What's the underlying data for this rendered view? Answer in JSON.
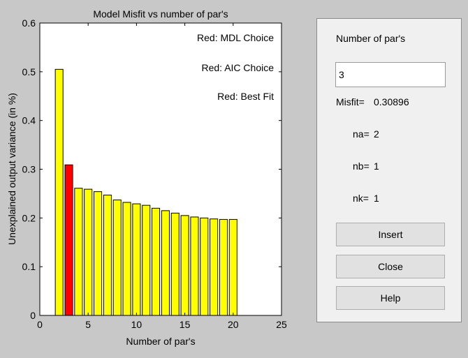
{
  "chart_data": {
    "type": "bar",
    "title": "Model Misfit vs number of par's",
    "xlabel": "Number of par's",
    "ylabel": "Unexplained output variance (in %)",
    "xlim": [
      0,
      25
    ],
    "ylim": [
      0,
      0.6
    ],
    "xticks": [
      0,
      5,
      10,
      15,
      20,
      25
    ],
    "yticks": [
      0,
      0.1,
      0.2,
      0.3,
      0.4,
      0.5,
      0.6
    ],
    "xtick_labels": [
      "0",
      "5",
      "10",
      "15",
      "20",
      "25"
    ],
    "ytick_labels": [
      "0",
      "0.1",
      "0.2",
      "0.3",
      "0.4",
      "0.5",
      "0.6"
    ],
    "grid": false,
    "x": [
      2,
      3,
      4,
      5,
      6,
      7,
      8,
      9,
      10,
      11,
      12,
      13,
      14,
      15,
      16,
      17,
      18,
      19,
      20
    ],
    "values": [
      0.505,
      0.309,
      0.261,
      0.259,
      0.254,
      0.247,
      0.237,
      0.232,
      0.229,
      0.226,
      0.22,
      0.215,
      0.21,
      0.205,
      0.202,
      0.2,
      0.198,
      0.197,
      0.197
    ],
    "bar_colors": [
      "#ffff00",
      "#ff0000",
      "#ffff00",
      "#ffff00",
      "#ffff00",
      "#ffff00",
      "#ffff00",
      "#ffff00",
      "#ffff00",
      "#ffff00",
      "#ffff00",
      "#ffff00",
      "#ffff00",
      "#ffff00",
      "#ffff00",
      "#ffff00",
      "#ffff00",
      "#ffff00",
      "#ffff00"
    ],
    "highlighted_x": 3,
    "annotations": [
      "Red: MDL Choice",
      "Red: AIC Choice",
      "Red: Best Fit"
    ]
  },
  "colors": {
    "default_bar": "#ffff00",
    "chosen_bar": "#ff0000",
    "plot_background": "#ffffff",
    "figure_background": "#c8c8c8",
    "panel_background": "#f0f0f0"
  },
  "panel": {
    "title": "Number of par's",
    "input_value": "3",
    "misfit_label": "Misfit=",
    "misfit_value": "0.30896",
    "na_label": "na=",
    "na_value": "2",
    "nb_label": "nb=",
    "nb_value": "1",
    "nk_label": "nk=",
    "nk_value": "1",
    "insert_label": "Insert",
    "close_label": "Close",
    "help_label": "Help"
  }
}
